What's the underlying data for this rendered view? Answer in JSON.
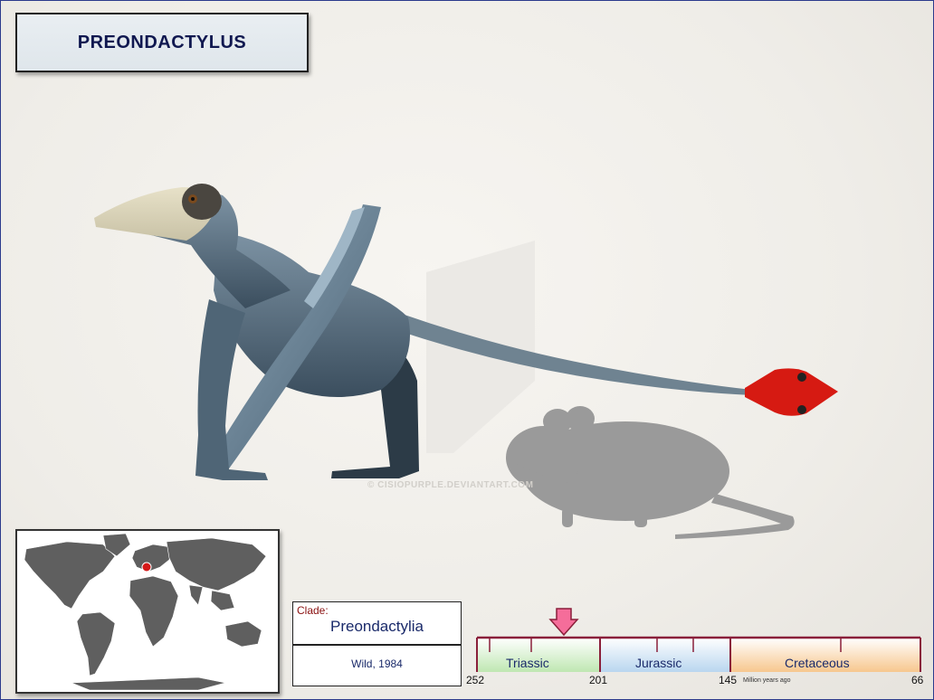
{
  "title": "PREONDACTYLUS",
  "watermark": "© CISIOPURPLE.DEVIANTART.COM",
  "clade": {
    "label": "Clade:",
    "name": "Preondactylia",
    "author": "Wild, 1984"
  },
  "timeline": {
    "periods": [
      {
        "name": "Triassic",
        "start": 252,
        "end": 201,
        "color": "#bfe7b2"
      },
      {
        "name": "Jurassic",
        "start": 201,
        "end": 145,
        "color": "#b9d6ef"
      },
      {
        "name": "Cretaceous",
        "start": 145,
        "end": 66,
        "color": "#f7c78e"
      }
    ],
    "tick_labels": [
      "252",
      "201",
      "145",
      "66"
    ],
    "units": "Million years ago",
    "marker_age_ma": 216,
    "marker_color": "#f56d9a"
  },
  "map": {
    "location_region": "Northern Italy",
    "location_color": "#d41818"
  },
  "colors": {
    "frame": "#2b3a8c",
    "title_text": "#101850"
  }
}
